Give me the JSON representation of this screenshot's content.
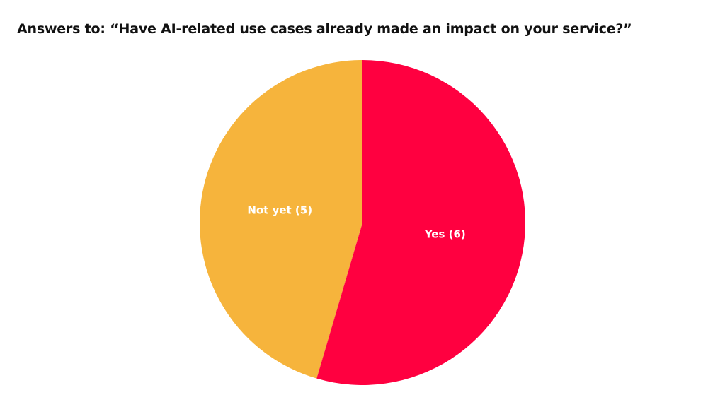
{
  "chart_data": {
    "type": "pie",
    "title": "Answers to: “Have AI-related use cases already made an impact on your service?”",
    "slices": [
      {
        "label": "Yes (6)",
        "value": 6,
        "color": "#FF0040"
      },
      {
        "label": "Not yet (5)",
        "value": 5,
        "color": "#F6B43C"
      }
    ],
    "start": "top, clockwise",
    "legend": "none (labels inside slices)"
  }
}
